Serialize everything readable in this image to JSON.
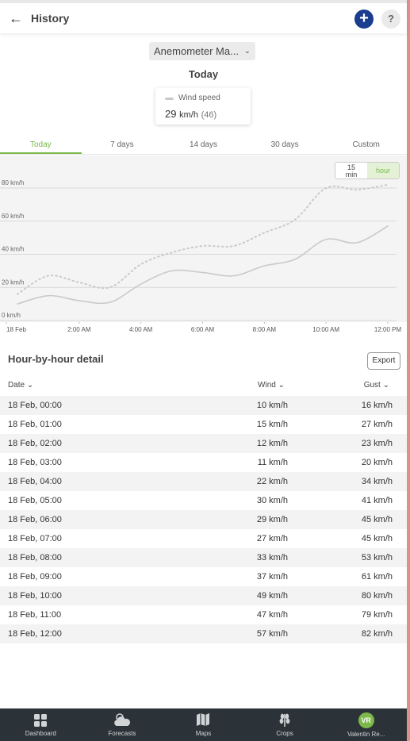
{
  "header": {
    "title": "History"
  },
  "station": {
    "label": "Anemometer Ma..."
  },
  "period_title": "Today",
  "legend": {
    "label": "Wind speed",
    "value": "29",
    "unit": "km/h",
    "gust": "(46)"
  },
  "tabs": [
    "Today",
    "7 days",
    "14 days",
    "30 days",
    "Custom"
  ],
  "interval": {
    "min_label_1": "15",
    "min_label_2": "min",
    "hour_label": "hour"
  },
  "chart_data": {
    "type": "line",
    "y_tick_labels": [
      "80 km/h",
      "60 km/h",
      "40 km/h",
      "20 km/h",
      "0 km/h"
    ],
    "x_tick_labels": [
      "18 Feb",
      "2:00 AM",
      "4:00 AM",
      "6:00 AM",
      "8:00 AM",
      "10:00 AM",
      "12:00 PM"
    ],
    "x": [
      0,
      1,
      2,
      3,
      4,
      5,
      6,
      7,
      8,
      9,
      10,
      11,
      12
    ],
    "ylim": [
      0,
      85
    ],
    "series": [
      {
        "name": "Wind speed",
        "style": "solid",
        "values": [
          10,
          15,
          12,
          11,
          22,
          30,
          29,
          27,
          33,
          37,
          49,
          47,
          57
        ]
      },
      {
        "style": "dotted",
        "values": [
          16,
          27,
          23,
          20,
          34,
          41,
          45,
          45,
          53,
          61,
          80,
          79,
          82
        ]
      }
    ],
    "colors": {
      "line": "#c9c9c9",
      "grid": "#d8d8d8"
    }
  },
  "detail": {
    "title": "Hour-by-hour detail",
    "export_label": "Export",
    "columns": {
      "date": "Date",
      "wind": "Wind",
      "gust": "Gust"
    },
    "rows": [
      {
        "date": "18 Feb, 00:00",
        "wind": "10 km/h",
        "gust": "16 km/h"
      },
      {
        "date": "18 Feb, 01:00",
        "wind": "15 km/h",
        "gust": "27 km/h"
      },
      {
        "date": "18 Feb, 02:00",
        "wind": "12 km/h",
        "gust": "23 km/h"
      },
      {
        "date": "18 Feb, 03:00",
        "wind": "11 km/h",
        "gust": "20 km/h"
      },
      {
        "date": "18 Feb, 04:00",
        "wind": "22 km/h",
        "gust": "34 km/h"
      },
      {
        "date": "18 Feb, 05:00",
        "wind": "30 km/h",
        "gust": "41 km/h"
      },
      {
        "date": "18 Feb, 06:00",
        "wind": "29 km/h",
        "gust": "45 km/h"
      },
      {
        "date": "18 Feb, 07:00",
        "wind": "27 km/h",
        "gust": "45 km/h"
      },
      {
        "date": "18 Feb, 08:00",
        "wind": "33 km/h",
        "gust": "53 km/h"
      },
      {
        "date": "18 Feb, 09:00",
        "wind": "37 km/h",
        "gust": "61 km/h"
      },
      {
        "date": "18 Feb, 10:00",
        "wind": "49 km/h",
        "gust": "80 km/h"
      },
      {
        "date": "18 Feb, 11:00",
        "wind": "47 km/h",
        "gust": "79 km/h"
      },
      {
        "date": "18 Feb, 12:00",
        "wind": "57 km/h",
        "gust": "82 km/h"
      }
    ]
  },
  "nav": [
    {
      "label": "Dashboard",
      "icon": "dashboard-icon"
    },
    {
      "label": "Forecasts",
      "icon": "forecast-icon"
    },
    {
      "label": "Maps",
      "icon": "map-icon"
    },
    {
      "label": "Crops",
      "icon": "crops-icon"
    },
    {
      "label": "Valentin Re...",
      "icon": "avatar",
      "initials": "VR"
    }
  ],
  "colors": {
    "accent": "#7cb84a",
    "primary": "#1a3d8f",
    "nav_bg": "#2c3338"
  }
}
